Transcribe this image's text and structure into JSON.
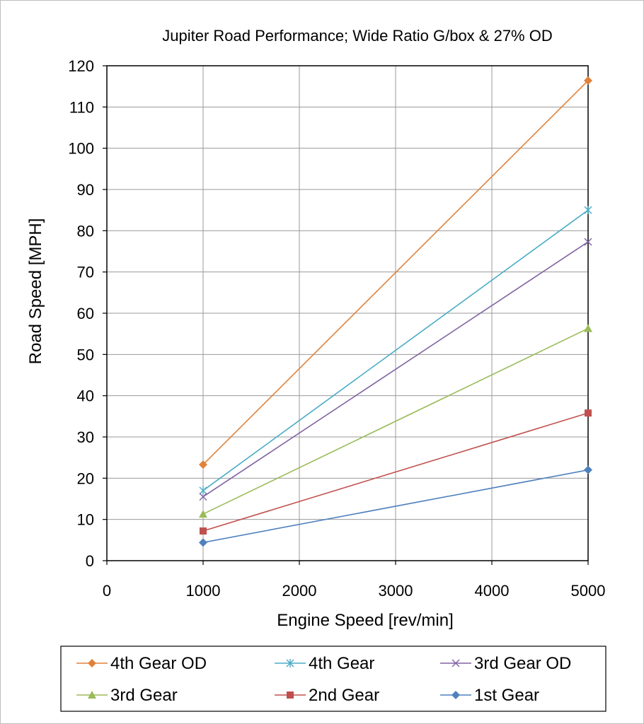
{
  "chart_data": {
    "type": "line",
    "title": "Jupiter Road Performance; Wide Ratio G/box & 27% OD",
    "xlabel": "Engine Speed [rev/min]",
    "ylabel": "Road Speed [MPH]",
    "xlim": [
      0,
      5000
    ],
    "ylim": [
      0,
      120
    ],
    "xticks": [
      0,
      1000,
      2000,
      3000,
      4000,
      5000
    ],
    "yticks": [
      0,
      10,
      20,
      30,
      40,
      50,
      60,
      70,
      80,
      90,
      100,
      110,
      120
    ],
    "grid": true,
    "legend_position": "bottom",
    "series": [
      {
        "name": "4th Gear OD",
        "color": "#e0823a",
        "marker": "diamond",
        "x": [
          1000,
          5000
        ],
        "y": [
          23.3,
          116.4
        ]
      },
      {
        "name": "4th Gear",
        "color": "#4aacc5",
        "marker": "asterisk",
        "x": [
          1000,
          5000
        ],
        "y": [
          17.0,
          85.0
        ]
      },
      {
        "name": "3rd Gear OD",
        "color": "#8064a2",
        "marker": "x",
        "x": [
          1000,
          5000
        ],
        "y": [
          15.5,
          77.3
        ]
      },
      {
        "name": "3rd Gear",
        "color": "#9bbb59",
        "marker": "triangle",
        "x": [
          1000,
          5000
        ],
        "y": [
          11.3,
          56.3
        ]
      },
      {
        "name": "2nd Gear",
        "color": "#c0504d",
        "marker": "square",
        "x": [
          1000,
          5000
        ],
        "y": [
          7.2,
          35.8
        ]
      },
      {
        "name": "1st Gear",
        "color": "#4f81bd",
        "marker": "diamond",
        "x": [
          1000,
          5000
        ],
        "y": [
          4.4,
          22.0
        ]
      }
    ]
  }
}
